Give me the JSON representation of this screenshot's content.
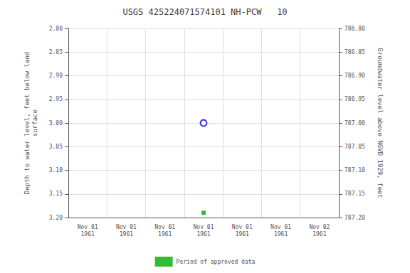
{
  "chart_data": {
    "type": "scatter",
    "title": "USGS 425224071574101 NH-PCW   10",
    "y_label": "Depth to water level, feet below land\nsurface",
    "y2_label": "Groundwater level above NGVD 1929, feet",
    "categories": [
      "Nov 01\n1961",
      "Nov 01\n1961",
      "Nov 01\n1961",
      "Nov 01\n1961",
      "Nov 01\n1961",
      "Nov 01\n1961",
      "Nov 02\n1961"
    ],
    "series": [
      {
        "values": [
          null,
          null,
          null,
          3.0,
          null,
          null,
          null
        ],
        "color": "#0000cc",
        "marker": "open_circle"
      },
      {
        "name": "Period of approved data",
        "values": [
          null,
          null,
          null,
          3.19,
          null,
          null,
          null
        ],
        "color": "#00aa00",
        "marker": "square"
      }
    ],
    "ylim": [
      3.2,
      2.8
    ],
    "yticks": [
      {
        "value": 2.8,
        "label": "2.80"
      },
      {
        "value": 2.85,
        "label": "2.85"
      },
      {
        "value": 2.9,
        "label": "2.90"
      },
      {
        "value": 2.95,
        "label": "2.95"
      },
      {
        "value": 3.0,
        "label": "3.00"
      },
      {
        "value": 3.05,
        "label": "3.05"
      },
      {
        "value": 3.1,
        "label": "3.10"
      },
      {
        "value": 3.15,
        "label": "3.15"
      },
      {
        "value": 3.2,
        "label": "3.20"
      }
    ],
    "y2lim": [
      787.2,
      786.8
    ],
    "y2ticks": [
      {
        "value": 787.2,
        "label": "787.20"
      },
      {
        "value": 787.15,
        "label": "787.15"
      },
      {
        "value": 787.1,
        "label": "787.10"
      },
      {
        "value": 787.05,
        "label": "787.05"
      },
      {
        "value": 787.0,
        "label": "787.00"
      },
      {
        "value": 786.95,
        "label": "786.95"
      },
      {
        "value": 786.9,
        "label": "786.90"
      },
      {
        "value": 786.85,
        "label": "786.85"
      },
      {
        "value": 786.8,
        "label": "786.80"
      }
    ],
    "grid": true,
    "legend": "bottom"
  }
}
